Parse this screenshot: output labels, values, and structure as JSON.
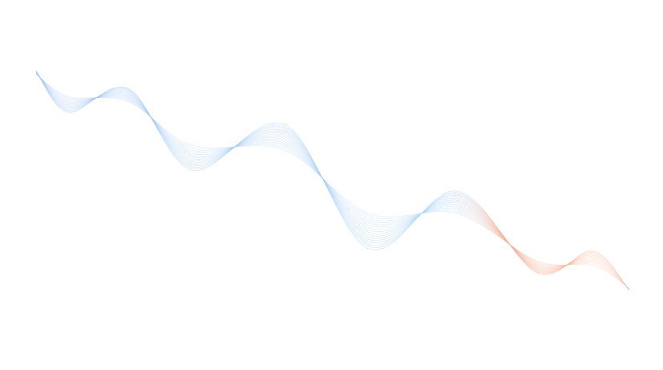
{
  "artwork": {
    "description_type": "decorative-wave",
    "colors": {
      "background": "#ffffff",
      "start": "#8fb8f0",
      "middle": "#a9d3f5",
      "end": "#f2a98a"
    },
    "line_count": 16
  }
}
